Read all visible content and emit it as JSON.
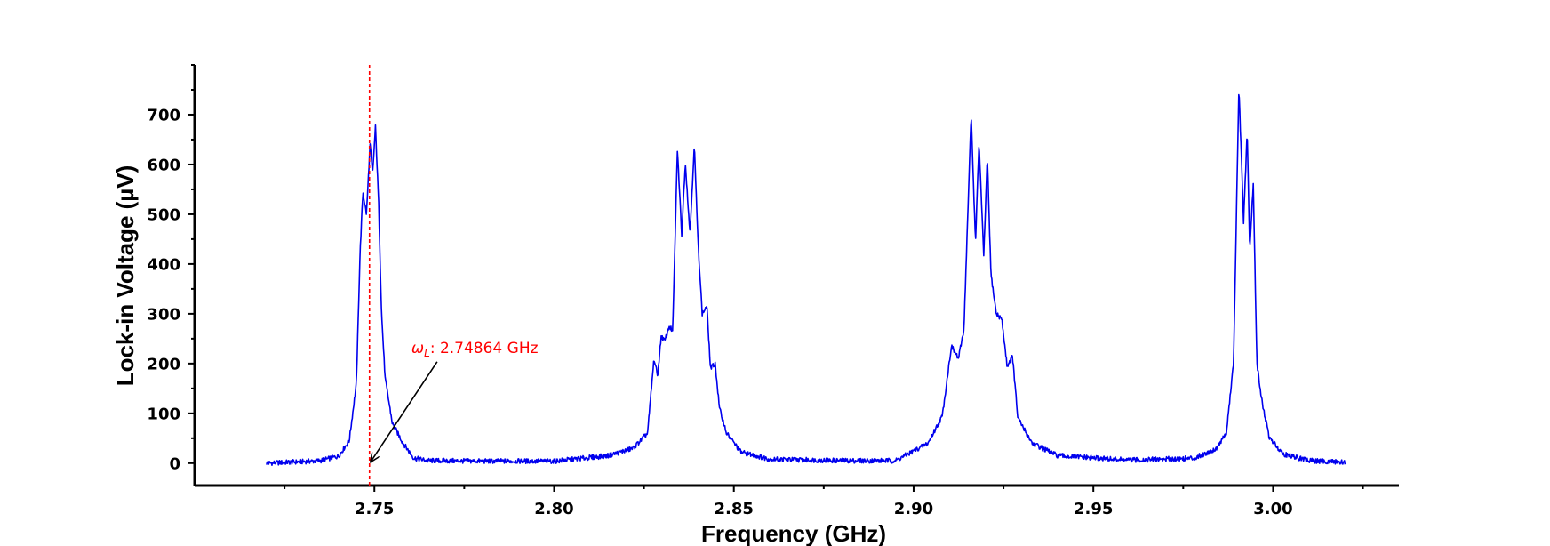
{
  "chart_data": {
    "type": "line",
    "title": "",
    "xlabel": "Frequency (GHz)",
    "ylabel": "Lock-in Voltage (µV)",
    "xlim": [
      2.7,
      3.035
    ],
    "ylim": [
      -45,
      800
    ],
    "x_ticks": [
      2.75,
      2.8,
      2.85,
      2.9,
      2.95,
      3.0
    ],
    "x_tick_labels": [
      "2.75",
      "2.80",
      "2.85",
      "2.90",
      "2.95",
      "3.00"
    ],
    "x_minor_step": 0.025,
    "y_ticks": [
      0,
      100,
      200,
      300,
      400,
      500,
      600,
      700
    ],
    "y_tick_labels": [
      "0",
      "100",
      "200",
      "300",
      "400",
      "500",
      "600",
      "700"
    ],
    "y_minor_step": 50,
    "grid": false,
    "series": [
      {
        "color": "#0000ee",
        "x": [
          2.72,
          2.73,
          2.735,
          2.74,
          2.743,
          2.745,
          2.746,
          2.7468,
          2.7478,
          2.7488,
          2.7495,
          2.7503,
          2.7512,
          2.752,
          2.753,
          2.755,
          2.758,
          2.761,
          2.765,
          2.78,
          2.8,
          2.815,
          2.822,
          2.826,
          2.8278,
          2.8288,
          2.8298,
          2.8308,
          2.832,
          2.833,
          2.8343,
          2.8355,
          2.8365,
          2.8378,
          2.839,
          2.84,
          2.8412,
          2.8425,
          2.8435,
          2.8448,
          2.846,
          2.848,
          2.852,
          2.86,
          2.88,
          2.895,
          2.904,
          2.908,
          2.9105,
          2.9125,
          2.914,
          2.916,
          2.9172,
          2.9182,
          2.9195,
          2.9205,
          2.9215,
          2.923,
          2.9245,
          2.926,
          2.9275,
          2.929,
          2.933,
          2.94,
          2.96,
          2.978,
          2.984,
          2.987,
          2.989,
          2.9905,
          2.9918,
          2.9928,
          2.9935,
          2.9945,
          2.9955,
          2.997,
          2.999,
          3.003,
          3.01,
          3.02
        ],
        "y": [
          0,
          3,
          5,
          14,
          45,
          160,
          420,
          545,
          500,
          640,
          580,
          675,
          520,
          300,
          170,
          80,
          40,
          10,
          5,
          4,
          4,
          15,
          30,
          60,
          210,
          175,
          255,
          245,
          275,
          265,
          630,
          460,
          605,
          460,
          640,
          450,
          300,
          315,
          190,
          200,
          110,
          60,
          22,
          8,
          5,
          5,
          40,
          95,
          235,
          210,
          270,
          700,
          445,
          645,
          415,
          615,
          380,
          300,
          290,
          195,
          215,
          90,
          40,
          15,
          6,
          10,
          28,
          60,
          200,
          755,
          485,
          665,
          430,
          560,
          200,
          120,
          50,
          18,
          5,
          2
        ]
      }
    ],
    "annotations": [
      {
        "type": "vline",
        "x": 2.74864,
        "color": "#ff0000",
        "style": "dashed"
      },
      {
        "type": "arrow",
        "text": "ω",
        "text_subscript": "L",
        "text_suffix": ": 2.74864 GHz",
        "color": "#ff0000",
        "arrow_color": "#000000",
        "arrow_from": [
          2.7645,
          225
        ],
        "arrow_to": [
          2.74864,
          0
        ]
      }
    ]
  }
}
